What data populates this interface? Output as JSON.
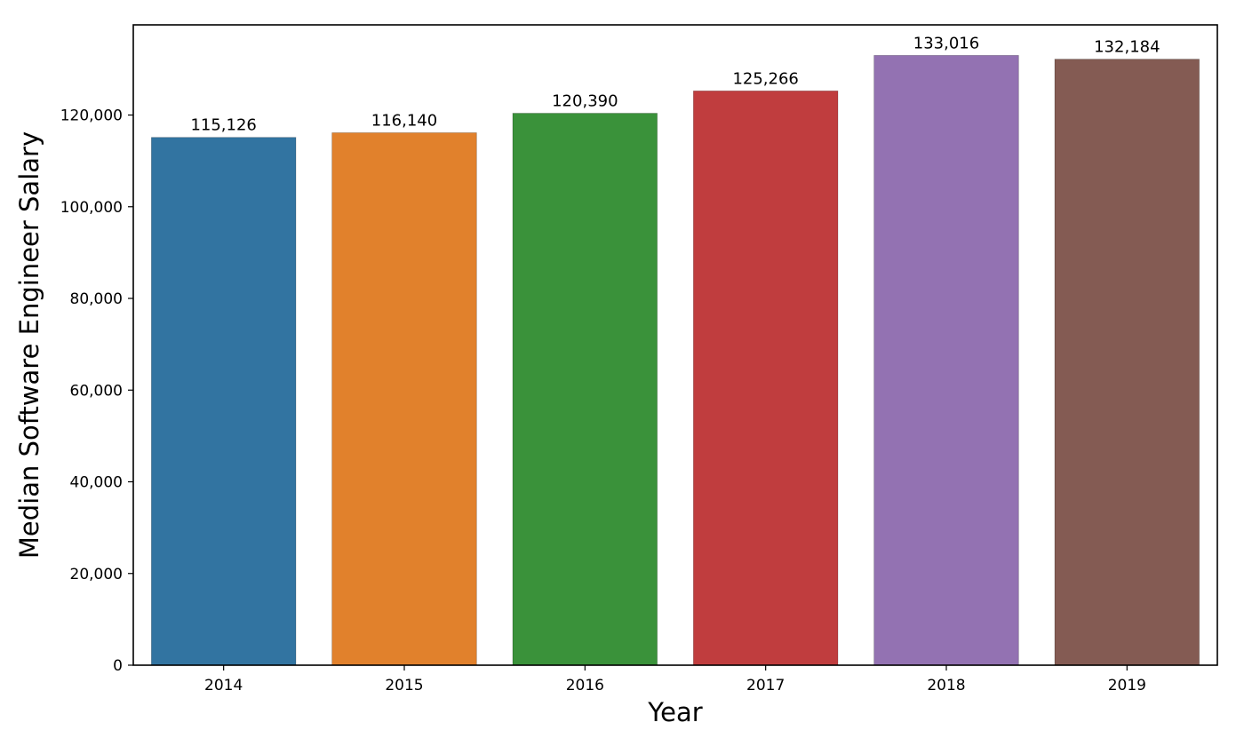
{
  "chart_data": {
    "type": "bar",
    "title": "",
    "xlabel": "Year",
    "ylabel": "Median Software Engineer Salary",
    "categories": [
      "2014",
      "2015",
      "2016",
      "2017",
      "2018",
      "2019"
    ],
    "values": [
      115126,
      116140,
      120390,
      125266,
      133016,
      132184
    ],
    "value_labels": [
      "115,126",
      "116,140",
      "120,390",
      "125,266",
      "133,016",
      "132,184"
    ],
    "colors": [
      "#3274a1",
      "#e1812c",
      "#3a923a",
      "#c03d3e",
      "#9372b2",
      "#845b53"
    ],
    "ylim": [
      0,
      139667
    ],
    "yticks": [
      0,
      20000,
      40000,
      60000,
      80000,
      100000,
      120000
    ],
    "ytick_labels": [
      "0",
      "20,000",
      "40,000",
      "60,000",
      "80,000",
      "100,000",
      "120,000"
    ],
    "grid": false,
    "legend": "none"
  }
}
